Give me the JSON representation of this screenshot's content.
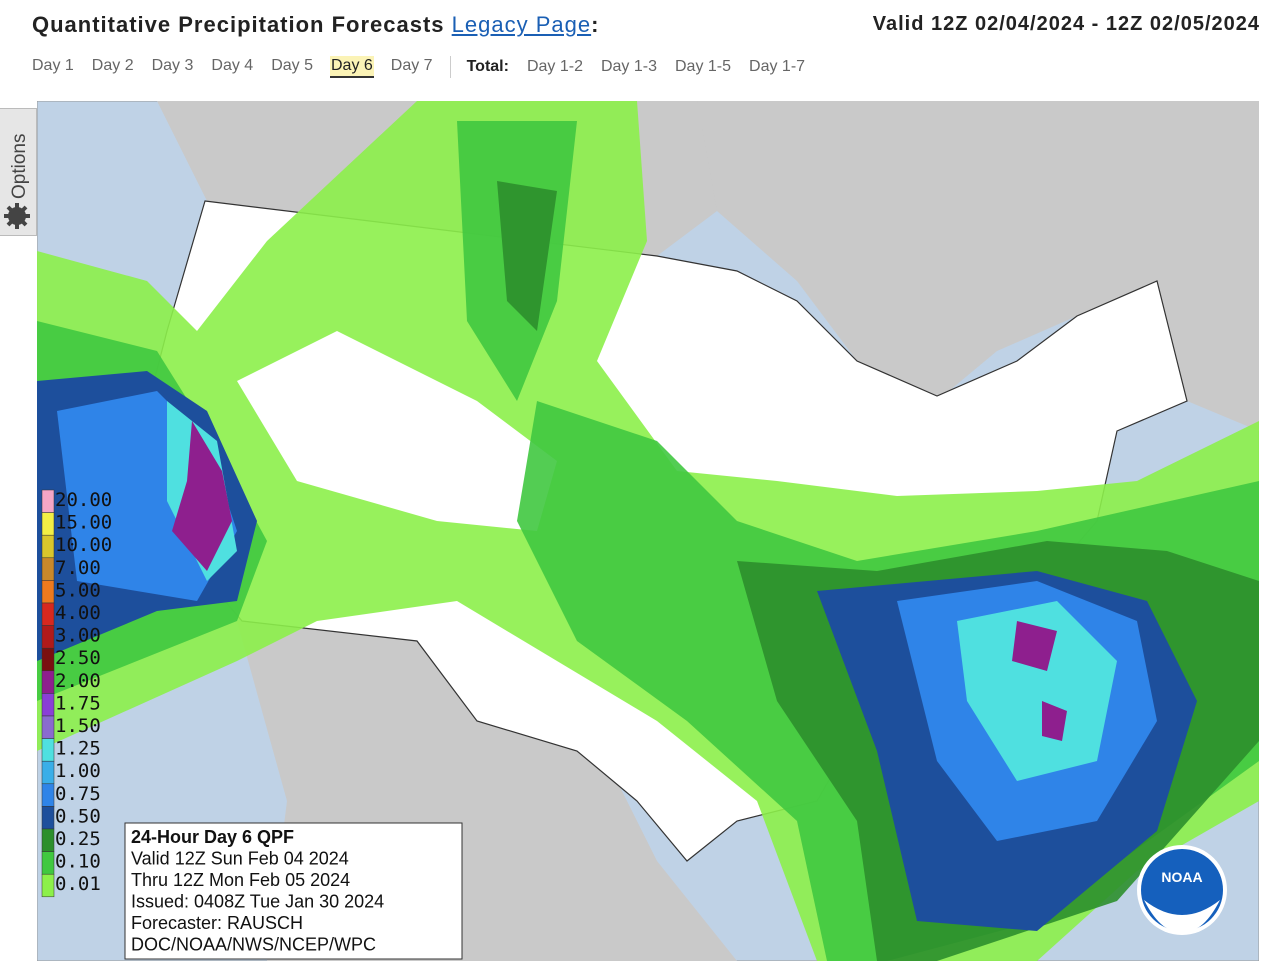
{
  "header": {
    "title": "Quantitative Precipitation Forecasts",
    "link": "Legacy Page",
    "colon": ":",
    "valid": "Valid 12Z 02/04/2024 - 12Z 02/05/2024"
  },
  "tabs": {
    "days": [
      "Day 1",
      "Day 2",
      "Day 3",
      "Day 4",
      "Day 5",
      "Day 6",
      "Day 7"
    ],
    "total_label": "Total:",
    "totals": [
      "Day 1-2",
      "Day 1-3",
      "Day 1-5",
      "Day 1-7"
    ]
  },
  "sidebar": {
    "label": "Options"
  },
  "legend": [
    {
      "label": "20.00",
      "color": "#f4a6c6"
    },
    {
      "label": "15.00",
      "color": "#f2ef45"
    },
    {
      "label": "10.00",
      "color": "#d8c62c"
    },
    {
      "label": "7.00",
      "color": "#c8882a"
    },
    {
      "label": "5.00",
      "color": "#ee7a1e"
    },
    {
      "label": "4.00",
      "color": "#d7281f"
    },
    {
      "label": "3.00",
      "color": "#b01a1a"
    },
    {
      "label": "2.50",
      "color": "#7a1010"
    },
    {
      "label": "2.00",
      "color": "#8e1f8e"
    },
    {
      "label": "1.75",
      "color": "#8a3fd6"
    },
    {
      "label": "1.50",
      "color": "#8a6bcf"
    },
    {
      "label": "1.25",
      "color": "#4fe0e0"
    },
    {
      "label": "1.00",
      "color": "#3aaee8"
    },
    {
      "label": "0.75",
      "color": "#2f84e8"
    },
    {
      "label": "0.50",
      "color": "#1d4f9c"
    },
    {
      "label": "0.25",
      "color": "#2c8f2c"
    },
    {
      "label": "0.10",
      "color": "#40c840"
    },
    {
      "label": "0.01",
      "color": "#8cf04a"
    }
  ],
  "info": [
    "24-Hour Day 6 QPF",
    "Valid 12Z Sun Feb 04 2024",
    "Thru 12Z Mon Feb 05 2024",
    "Issued: 0408Z Tue Jan 30 2024",
    "Forecaster: RAUSCH",
    "DOC/NOAA/NWS/NCEP/WPC"
  ],
  "logo": "NOAA"
}
